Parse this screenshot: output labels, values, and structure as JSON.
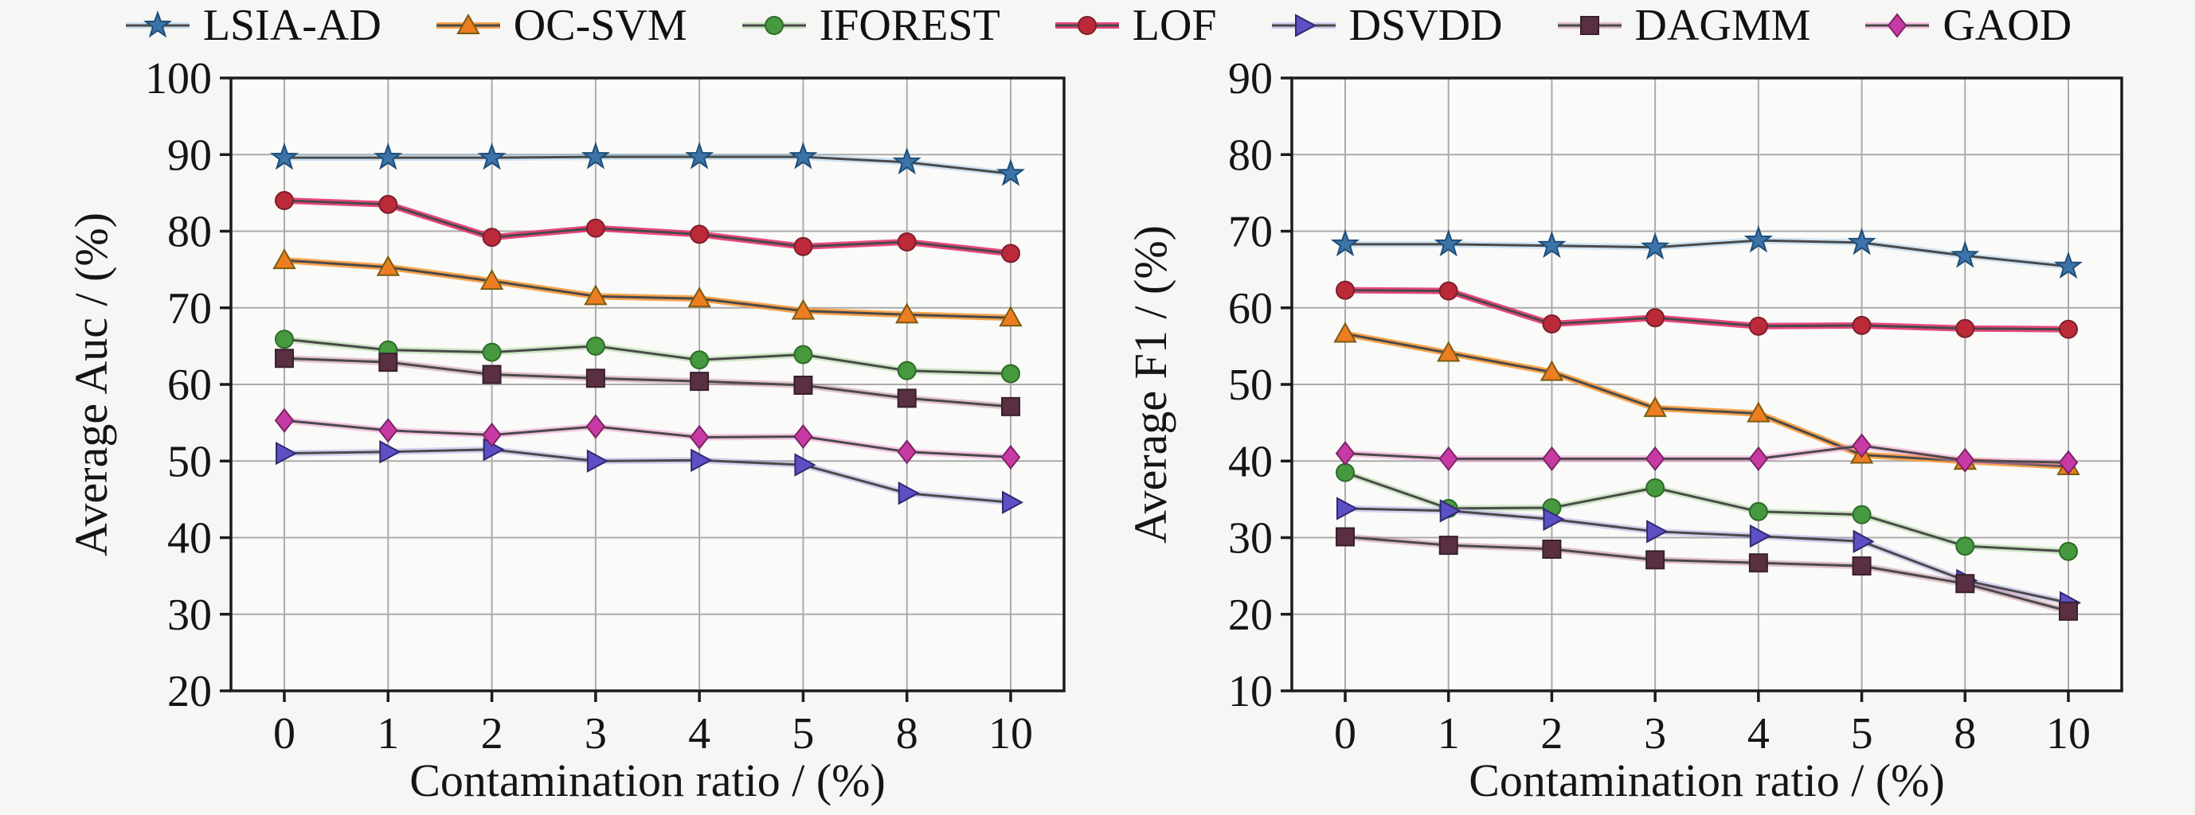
{
  "figure": {
    "background": "#f6f6f4",
    "grid_color": "#ababab",
    "spine_color": "#1c1c1c",
    "line_color": "#4a4a4a"
  },
  "legend": {
    "position": "top",
    "items": [
      "LSIA-AD",
      "OC-SVM",
      "IFOREST",
      "LOF",
      "DSVDD",
      "DAGMM",
      "GAOD"
    ]
  },
  "chart_data": [
    {
      "type": "line",
      "title": "",
      "xlabel": "Contamination ratio / (%)",
      "ylabel": "Average Auc / (%)",
      "categories": [
        "0",
        "1",
        "2",
        "3",
        "4",
        "5",
        "8",
        "10"
      ],
      "ylim": [
        20,
        100
      ],
      "ytick_step": 10,
      "grid": true,
      "series": [
        {
          "name": "LSIA-AD",
          "marker": "star",
          "color": "#3c73a8",
          "edge": "#1f4e79",
          "halo": "#8fc1e8",
          "halo_opacity": 0.4,
          "values": [
            89.6,
            89.6,
            89.6,
            89.7,
            89.7,
            89.7,
            89.0,
            87.5
          ]
        },
        {
          "name": "OC-SVM",
          "marker": "triangle-up",
          "color": "#ed7d21",
          "edge": "#7a5c10",
          "halo": "#f79a3a",
          "halo_opacity": 0.9,
          "values": [
            76.2,
            75.3,
            73.5,
            71.5,
            71.2,
            69.6,
            69.1,
            68.7
          ]
        },
        {
          "name": "IFOREST",
          "marker": "circle",
          "color": "#47993f",
          "edge": "#2d6b28",
          "halo": "#8cc978",
          "halo_opacity": 0.4,
          "values": [
            65.9,
            64.5,
            64.2,
            65.0,
            63.2,
            63.9,
            61.8,
            61.4
          ]
        },
        {
          "name": "LOF",
          "marker": "circle",
          "color": "#bc2a3a",
          "edge": "#7a1f2b",
          "halo": "#e8336e",
          "halo_opacity": 0.9,
          "values": [
            84.0,
            83.5,
            79.2,
            80.4,
            79.6,
            78.0,
            78.6,
            77.1
          ]
        },
        {
          "name": "DSVDD",
          "marker": "triangle-right",
          "color": "#5d50c4",
          "edge": "#2f2a70",
          "halo": "#9a90e0",
          "halo_opacity": 0.4,
          "values": [
            51.0,
            51.2,
            51.5,
            50.0,
            50.1,
            49.5,
            45.8,
            44.6
          ]
        },
        {
          "name": "DAGMM",
          "marker": "square",
          "color": "#5a2f42",
          "edge": "#38202c",
          "halo": "#b05a78",
          "halo_opacity": 0.35,
          "values": [
            63.4,
            62.9,
            61.3,
            60.8,
            60.4,
            59.9,
            58.2,
            57.1
          ]
        },
        {
          "name": "GAOD",
          "marker": "diamond",
          "color": "#c73aa4",
          "edge": "#7c2465",
          "halo": "#ef86c9",
          "halo_opacity": 0.45,
          "values": [
            55.3,
            54.0,
            53.4,
            54.5,
            53.1,
            53.2,
            51.2,
            50.5
          ]
        }
      ]
    },
    {
      "type": "line",
      "title": "",
      "xlabel": "Contamination ratio / (%)",
      "ylabel": "Average F1 / (%)",
      "categories": [
        "0",
        "1",
        "2",
        "3",
        "4",
        "5",
        "8",
        "10"
      ],
      "ylim": [
        10,
        90
      ],
      "ytick_step": 10,
      "grid": true,
      "series": [
        {
          "name": "LSIA-AD",
          "marker": "star",
          "color": "#3c73a8",
          "edge": "#1f4e79",
          "halo": "#8fc1e8",
          "halo_opacity": 0.4,
          "values": [
            68.3,
            68.3,
            68.1,
            67.9,
            68.8,
            68.5,
            66.8,
            65.4
          ]
        },
        {
          "name": "OC-SVM",
          "marker": "triangle-up",
          "color": "#ed7d21",
          "edge": "#7a5c10",
          "halo": "#f79a3a",
          "halo_opacity": 0.9,
          "values": [
            56.6,
            54.1,
            51.6,
            46.9,
            46.2,
            40.8,
            40.0,
            39.3
          ]
        },
        {
          "name": "IFOREST",
          "marker": "circle",
          "color": "#47993f",
          "edge": "#2d6b28",
          "halo": "#8cc978",
          "halo_opacity": 0.4,
          "values": [
            38.5,
            33.8,
            33.9,
            36.5,
            33.4,
            33.0,
            28.9,
            28.2
          ]
        },
        {
          "name": "LOF",
          "marker": "circle",
          "color": "#bc2a3a",
          "edge": "#7a1f2b",
          "halo": "#e8336e",
          "halo_opacity": 0.9,
          "values": [
            62.3,
            62.2,
            57.9,
            58.7,
            57.6,
            57.7,
            57.3,
            57.2
          ]
        },
        {
          "name": "DSVDD",
          "marker": "triangle-right",
          "color": "#5d50c4",
          "edge": "#2f2a70",
          "halo": "#9a90e0",
          "halo_opacity": 0.4,
          "values": [
            33.8,
            33.5,
            32.4,
            30.8,
            30.2,
            29.5,
            24.4,
            21.5
          ]
        },
        {
          "name": "DAGMM",
          "marker": "square",
          "color": "#5a2f42",
          "edge": "#38202c",
          "halo": "#b05a78",
          "halo_opacity": 0.35,
          "values": [
            30.1,
            29.0,
            28.5,
            27.1,
            26.7,
            26.3,
            24.0,
            20.4
          ]
        },
        {
          "name": "GAOD",
          "marker": "diamond",
          "color": "#c73aa4",
          "edge": "#7c2465",
          "halo": "#ef86c9",
          "halo_opacity": 0.45,
          "values": [
            41.0,
            40.3,
            40.3,
            40.3,
            40.3,
            42.0,
            40.1,
            39.8
          ]
        }
      ]
    }
  ]
}
